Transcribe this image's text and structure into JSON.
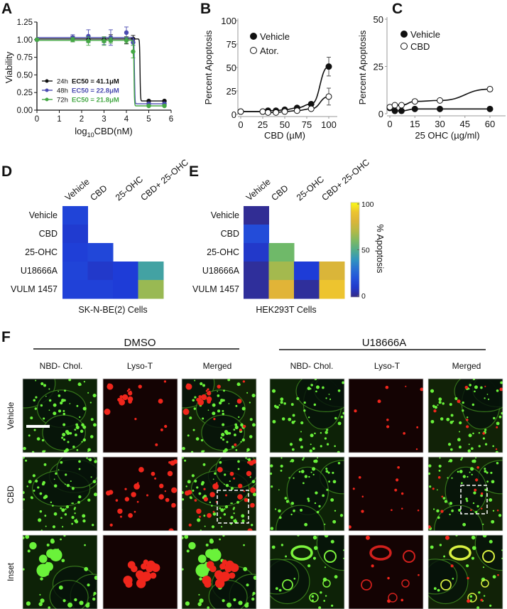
{
  "panel_letters": {
    "a": "A",
    "b": "B",
    "c": "C",
    "d": "D",
    "e": "E",
    "f": "F"
  },
  "colors": {
    "black": "#111111",
    "blue": "#4b4bb0",
    "green": "#45a845",
    "axis": "#999999"
  },
  "chart_data": [
    {
      "panel": "A",
      "type": "scatter",
      "xlabel_main": "log",
      "xlabel_sub": "10",
      "xlabel_rest": "CBD(nM)",
      "ylabel": "Viability",
      "xlim": [
        0,
        6
      ],
      "ylim": [
        0,
        1.25
      ],
      "xticks": [
        "0",
        "1",
        "2",
        "3",
        "4",
        "5",
        "6"
      ],
      "yticks": [
        "0.00",
        "0.25",
        "0.50",
        "0.75",
        "1.00",
        "1.25"
      ],
      "x": [
        0,
        1.6,
        2.3,
        3.0,
        3.3,
        4.0,
        4.3,
        5.0,
        5.7
      ],
      "series": [
        {
          "name": "24h",
          "ec50_label": "EC50 = 41.1μM",
          "color": "#111111",
          "values": [
            1.0,
            1.01,
            1.0,
            1.0,
            1.02,
            0.99,
            1.01,
            0.13,
            0.13
          ],
          "errors": [
            0,
            0.04,
            0.04,
            0.04,
            0.05,
            0.05,
            0.05,
            0.01,
            0.01
          ],
          "fit": {
            "top": 1.01,
            "bottom": 0.13,
            "logEC50": 4.61
          }
        },
        {
          "name": "48h",
          "ec50_label": "EC50 = 22.8μM",
          "color": "#4b4bb0",
          "values": [
            1.0,
            1.03,
            1.05,
            0.98,
            1.03,
            1.1,
            0.96,
            0.09,
            0.09
          ],
          "errors": [
            0,
            0.04,
            0.09,
            0.05,
            0.11,
            0.08,
            0.04,
            0.01,
            0.01
          ],
          "fit": {
            "top": 1.03,
            "bottom": 0.09,
            "logEC50": 4.36
          }
        },
        {
          "name": "72h",
          "ec50_label": "EC50 = 21.8μM",
          "color": "#45a845",
          "values": [
            1.0,
            1.0,
            0.98,
            0.98,
            0.99,
            0.99,
            0.83,
            0.06,
            0.06
          ],
          "errors": [
            0,
            0.03,
            0.06,
            0.06,
            0.04,
            0.04,
            0.09,
            0.01,
            0.01
          ],
          "fit": {
            "top": 0.99,
            "bottom": 0.06,
            "logEC50": 4.34
          }
        }
      ],
      "legend": "bottom-left"
    },
    {
      "panel": "B",
      "type": "line",
      "xlabel": "CBD (µM)",
      "ylabel": "Percent Apoptosis",
      "xlim": [
        0,
        100
      ],
      "ylim": [
        0,
        100
      ],
      "xticks": [
        "0",
        "25",
        "50",
        "75",
        "100"
      ],
      "yticks": [
        "0",
        "25",
        "50",
        "75",
        "100"
      ],
      "x": [
        0,
        25,
        31,
        40,
        50,
        64,
        80,
        100
      ],
      "series": [
        {
          "name": "Vehicle",
          "marker": "filled",
          "values": [
            3,
            3,
            4,
            4,
            5,
            7,
            11,
            51
          ],
          "errors": [
            0,
            0,
            0,
            0,
            0,
            0,
            0,
            10
          ]
        },
        {
          "name": "Ator.",
          "marker": "open",
          "values": [
            3,
            3,
            2,
            2,
            3,
            4,
            6,
            19
          ],
          "errors": [
            0,
            0,
            0,
            0,
            0,
            0,
            0,
            9
          ]
        }
      ],
      "legend": "top-left"
    },
    {
      "panel": "C",
      "type": "line",
      "xlabel": "25 OHC (µg/ml)",
      "ylabel": "Percent Apoptosis",
      "xlim": [
        0,
        70
      ],
      "ylim": [
        0,
        50
      ],
      "xticks": [
        "0",
        "15",
        "30",
        "45",
        "60"
      ],
      "yticks": [
        "0",
        "25",
        "50"
      ],
      "x": [
        0,
        3,
        7,
        15,
        30,
        60
      ],
      "series": [
        {
          "name": "Vehicle",
          "marker": "filled",
          "values": [
            3,
            1.5,
            1.5,
            2.5,
            2.5,
            2.5
          ]
        },
        {
          "name": "CBD",
          "marker": "open",
          "values": [
            3.5,
            4.5,
            4.5,
            6.5,
            7,
            13
          ]
        }
      ],
      "legend": "top-left"
    },
    {
      "panel": "D",
      "type": "heatmap",
      "caption": "SK-N-BE(2) Cells",
      "columns": [
        "Vehicle",
        "CBD",
        "25-OHC",
        "CBD+ 25-OHC"
      ],
      "rows": [
        "Vehicle",
        "CBD",
        "25-OHC",
        "U18666A",
        "VULM 1457"
      ],
      "values": [
        [
          15,
          null,
          null,
          null
        ],
        [
          11,
          null,
          null,
          null
        ],
        [
          13,
          16,
          null,
          null
        ],
        [
          15,
          10,
          12,
          45
        ],
        [
          14,
          14,
          12,
          65
        ]
      ]
    },
    {
      "panel": "E",
      "type": "heatmap",
      "caption": "HEK293T Cells",
      "columns": [
        "Vehicle",
        "CBD",
        "25-OHC",
        "CBD+ 25-OHC"
      ],
      "rows": [
        "Vehicle",
        "CBD",
        "25-OHC",
        "U18666A",
        "VULM 1457"
      ],
      "values": [
        [
          2,
          null,
          null,
          null
        ],
        [
          18,
          null,
          null,
          null
        ],
        [
          10,
          57,
          null,
          null
        ],
        [
          3,
          67,
          12,
          80
        ],
        [
          3,
          82,
          3,
          90
        ]
      ],
      "colorbar": {
        "label": "% Apoptosis",
        "ticks": [
          "0",
          "50",
          "100"
        ],
        "range": [
          0,
          100
        ],
        "colormap": "parula"
      }
    }
  ],
  "panel_f": {
    "groups": [
      "DMSO",
      "U18666A"
    ],
    "channels": [
      "NBD- Chol.",
      "Lyso-T",
      "Merged"
    ],
    "rows": [
      "Vehicle",
      "CBD",
      "Inset"
    ]
  }
}
